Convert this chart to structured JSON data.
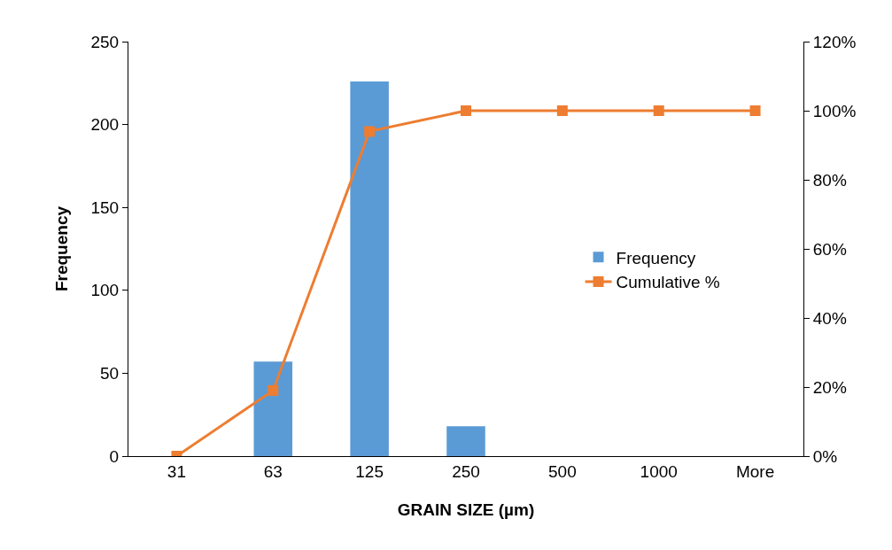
{
  "chart_data": {
    "type": "bar",
    "xlabel": "GRAIN SIZE (µm)",
    "ylabel": "Frequency",
    "categories": [
      "31",
      "63",
      "125",
      "250",
      "500",
      "1000",
      "More"
    ],
    "series": [
      {
        "name": "Frequency",
        "color": "#5b9bd5",
        "values": [
          0,
          57,
          226,
          18,
          0,
          0,
          0
        ]
      },
      {
        "name": "Cumulative %",
        "type": "line",
        "axis": "y2",
        "color": "#ed7d31",
        "marker": "square",
        "values": [
          0,
          19,
          94,
          100,
          100,
          100,
          100
        ]
      }
    ],
    "ylim": [
      0,
      250
    ],
    "yticks": [
      0,
      50,
      100,
      150,
      200,
      250
    ],
    "y2lim": [
      0,
      120
    ],
    "y2ticks": [
      {
        "value": 0,
        "label": "0%"
      },
      {
        "value": 20,
        "label": "20%"
      },
      {
        "value": 40,
        "label": "40%"
      },
      {
        "value": 60,
        "label": "60%"
      },
      {
        "value": 80,
        "label": "80%"
      },
      {
        "value": 100,
        "label": "100%"
      },
      {
        "value": 120,
        "label": "120%"
      }
    ],
    "grid": false,
    "legend": "right"
  }
}
